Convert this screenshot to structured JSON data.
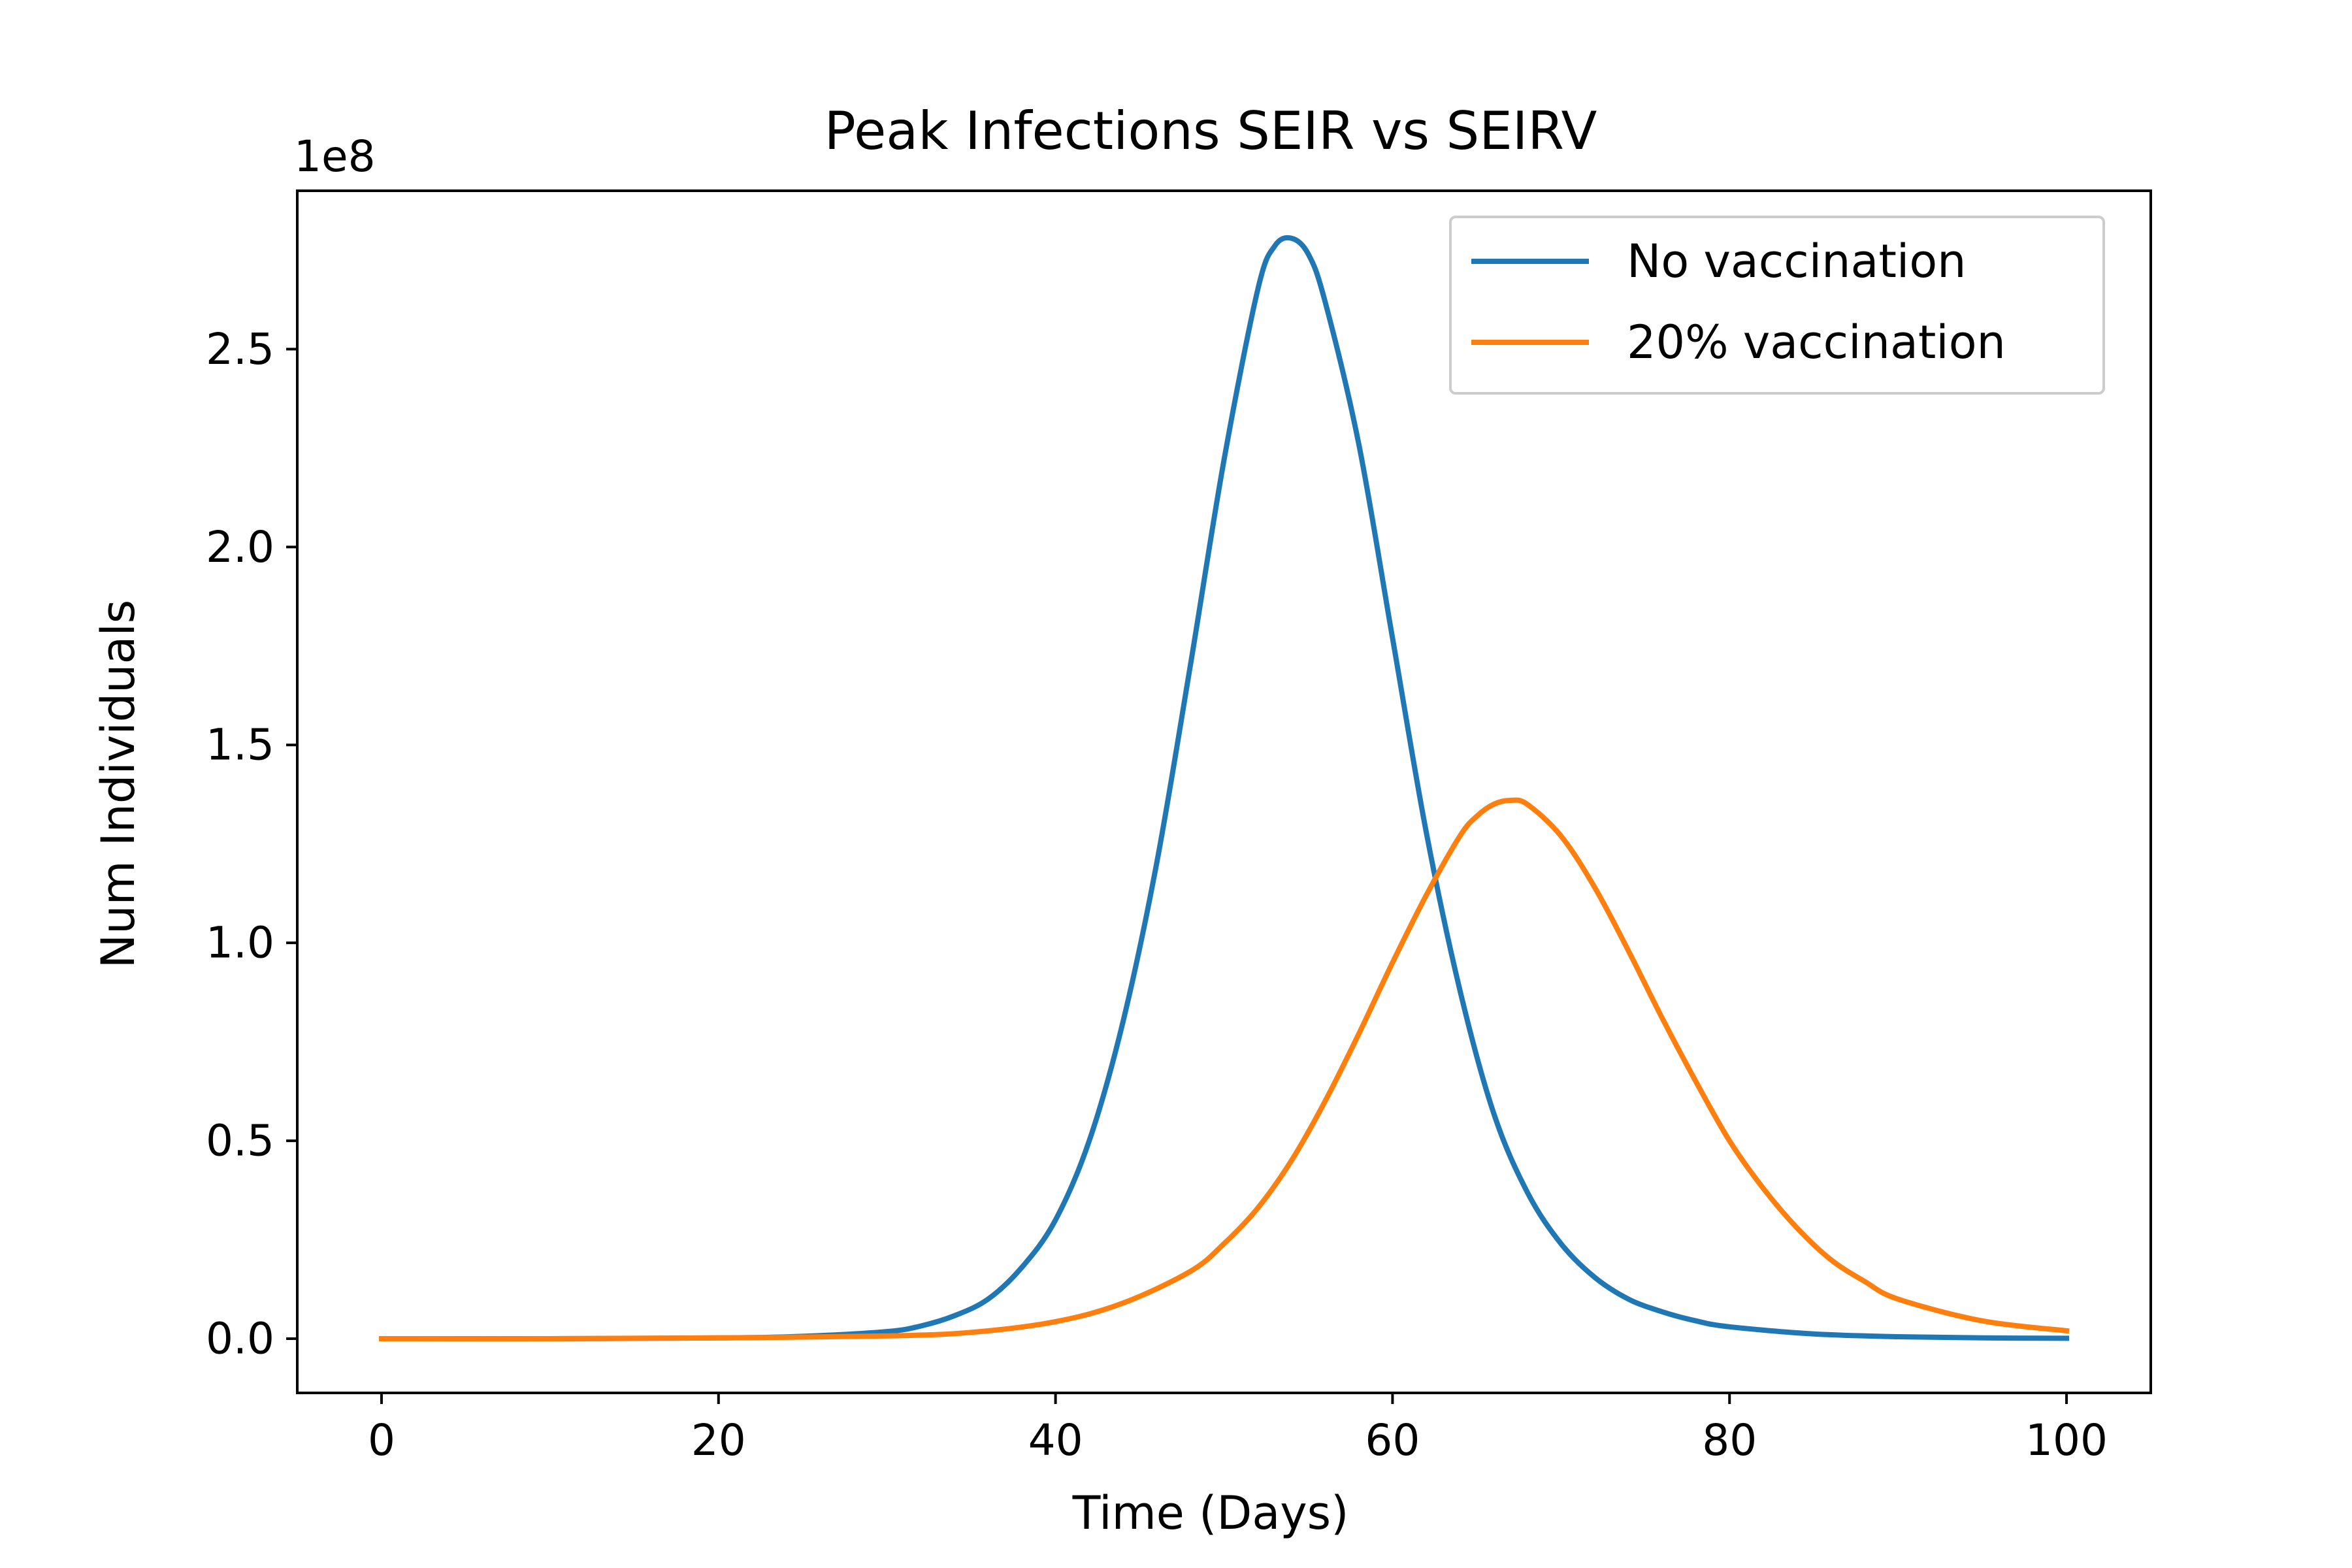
{
  "chart_data": {
    "type": "line",
    "title": "Peak Infections SEIR vs SEIRV",
    "xlabel": "Time (Days)",
    "ylabel": "Num Individuals",
    "y_offset_label": "1e8",
    "xlim": [
      -5,
      105
    ],
    "ylim": [
      -0.137,
      2.9
    ],
    "x_ticks": [
      0,
      20,
      40,
      60,
      80,
      100
    ],
    "x_tick_labels": [
      "0",
      "20",
      "40",
      "60",
      "80",
      "100"
    ],
    "y_ticks": [
      0.0,
      0.5,
      1.0,
      1.5,
      2.0,
      2.5
    ],
    "y_tick_labels": [
      "0.0",
      "0.5",
      "1.0",
      "1.5",
      "2.0",
      "2.5"
    ],
    "grid": false,
    "legend_position": "top-right",
    "series": [
      {
        "name": "No vaccination",
        "color": "#1f77b4",
        "x": [
          0,
          10,
          20,
          25,
          30,
          32,
          34,
          36,
          38,
          40,
          42,
          44,
          46,
          48,
          50,
          52,
          53,
          54,
          55,
          56,
          58,
          60,
          62,
          64,
          66,
          68,
          70,
          72,
          74,
          76,
          78,
          80,
          85,
          90,
          95,
          100
        ],
        "y": [
          0.0,
          0.0,
          0.002,
          0.006,
          0.018,
          0.032,
          0.058,
          0.1,
          0.18,
          0.3,
          0.5,
          0.8,
          1.2,
          1.7,
          2.22,
          2.65,
          2.76,
          2.78,
          2.74,
          2.62,
          2.26,
          1.77,
          1.28,
          0.88,
          0.57,
          0.37,
          0.24,
          0.155,
          0.1,
          0.068,
          0.045,
          0.03,
          0.012,
          0.005,
          0.002,
          0.001
        ]
      },
      {
        "name": "20% vaccination",
        "color": "#ff7f0e",
        "x": [
          0,
          10,
          20,
          30,
          35,
          40,
          44,
          48,
          50,
          52,
          54,
          56,
          58,
          60,
          62,
          64,
          65,
          66,
          67,
          68,
          70,
          72,
          74,
          76,
          78,
          80,
          82,
          84,
          86,
          88,
          90,
          95,
          100
        ],
        "y": [
          0.0,
          0.0,
          0.002,
          0.007,
          0.016,
          0.043,
          0.09,
          0.17,
          0.24,
          0.33,
          0.45,
          0.6,
          0.77,
          0.95,
          1.12,
          1.27,
          1.32,
          1.35,
          1.36,
          1.35,
          1.27,
          1.14,
          0.98,
          0.81,
          0.65,
          0.5,
          0.38,
          0.28,
          0.2,
          0.145,
          0.1,
          0.045,
          0.02
        ]
      }
    ]
  }
}
